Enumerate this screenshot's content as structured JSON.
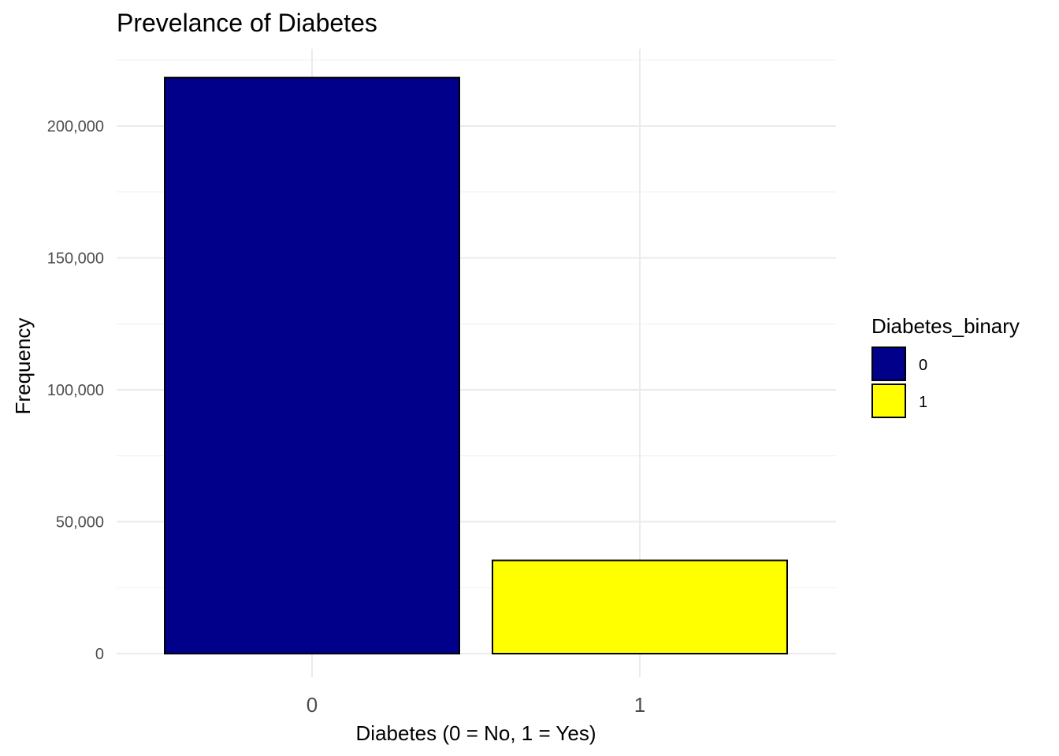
{
  "chart_data": {
    "type": "bar",
    "title": "Prevelance of Diabetes",
    "xlabel": "Diabetes (0 = No, 1 = Yes)",
    "ylabel": "Frequency",
    "categories": [
      "0",
      "1"
    ],
    "values": [
      218334,
      35346
    ],
    "ylim": [
      0,
      225000
    ],
    "yticks": [
      0,
      50000,
      100000,
      150000,
      200000
    ],
    "ytick_labels": [
      "0",
      "50,000",
      "100,000",
      "150,000",
      "200,000"
    ],
    "grid": true,
    "legend": {
      "title": "Diabetes_binary",
      "position": "right",
      "entries": [
        {
          "label": "0",
          "color": "#00008b"
        },
        {
          "label": "1",
          "color": "#ffff00"
        }
      ]
    },
    "colors": [
      "#00008b",
      "#ffff00"
    ],
    "bar_outline": "#000000"
  }
}
